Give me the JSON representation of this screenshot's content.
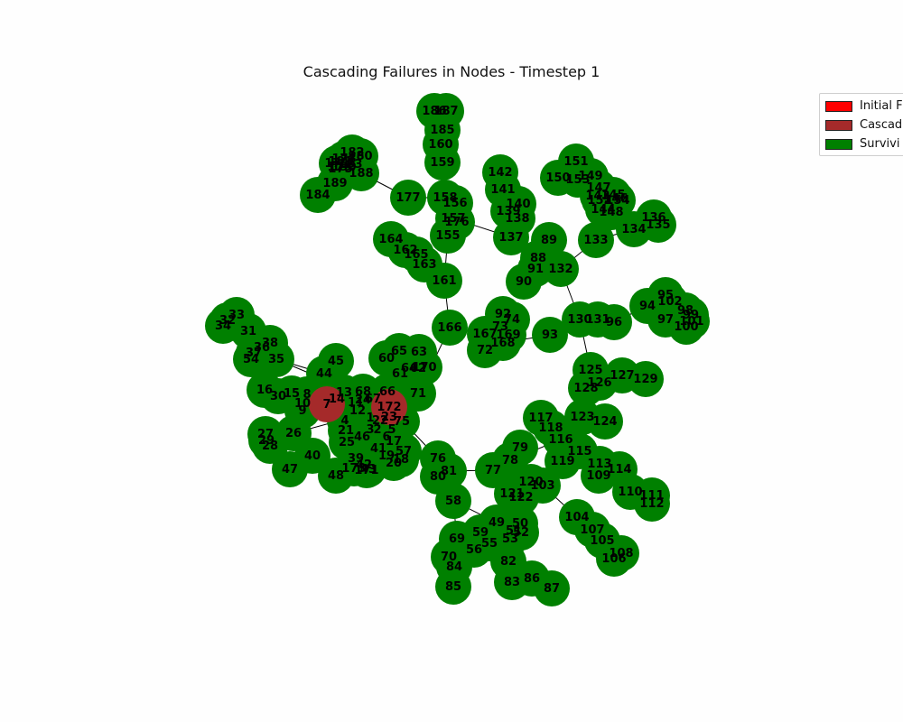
{
  "figure": {
    "title": "Cascading Failures in Nodes - Timestep 1"
  },
  "legend": {
    "placement": "top-right, clipped at figure edge",
    "items": [
      {
        "label": "Initial F",
        "color": "#ff0000"
      },
      {
        "label": "Cascad",
        "color": "#a52a2a"
      },
      {
        "label": "Survivi",
        "color": "#008000"
      }
    ]
  },
  "colors": {
    "surviving": "#008000",
    "cascaded": "#a52a2a",
    "edge": "#000000",
    "label": "#000000"
  },
  "network": {
    "failed_nodes": [
      "172",
      "7"
    ],
    "visible_node_labels": [
      "1",
      "2",
      "3",
      "4",
      "5",
      "6",
      "7",
      "8",
      "9",
      "10",
      "11",
      "12",
      "13",
      "14",
      "15",
      "16",
      "17",
      "18",
      "19",
      "20",
      "21",
      "22",
      "23",
      "24",
      "25",
      "26",
      "27",
      "28",
      "29",
      "30",
      "31",
      "32",
      "33",
      "34",
      "35",
      "36",
      "37",
      "38",
      "39",
      "40",
      "41",
      "42",
      "43",
      "44",
      "45",
      "46",
      "47",
      "48",
      "49",
      "50",
      "51",
      "52",
      "53",
      "54",
      "55",
      "56",
      "57",
      "58",
      "59",
      "60",
      "61",
      "62",
      "63",
      "64",
      "65",
      "66",
      "67",
      "68",
      "69",
      "70",
      "71",
      "72",
      "73",
      "74",
      "75",
      "76",
      "77",
      "78",
      "79",
      "80",
      "81",
      "82",
      "83",
      "84",
      "85",
      "86",
      "87",
      "88",
      "89",
      "90",
      "91",
      "92",
      "93",
      "94",
      "95",
      "96",
      "97",
      "98",
      "99",
      "100",
      "101",
      "102",
      "103",
      "104",
      "105",
      "106",
      "107",
      "108",
      "109",
      "110",
      "111",
      "112",
      "113",
      "114",
      "115",
      "116",
      "117",
      "118",
      "119",
      "120",
      "121",
      "122",
      "123",
      "124",
      "125",
      "126",
      "127",
      "128",
      "129",
      "130",
      "131",
      "132",
      "133",
      "134",
      "135",
      "136",
      "137",
      "138",
      "139",
      "140",
      "141",
      "142",
      "143",
      "144",
      "145",
      "146",
      "147",
      "148",
      "149",
      "150",
      "151",
      "152",
      "153",
      "154",
      "155",
      "156",
      "157",
      "158",
      "159",
      "160",
      "161",
      "162",
      "163",
      "164",
      "165",
      "166",
      "167",
      "168",
      "169",
      "170",
      "171",
      "172",
      "173",
      "174",
      "175",
      "176",
      "177",
      "178",
      "179",
      "180",
      "181",
      "182",
      "183",
      "184",
      "185",
      "186",
      "187",
      "188",
      "189",
      "190"
    ]
  }
}
